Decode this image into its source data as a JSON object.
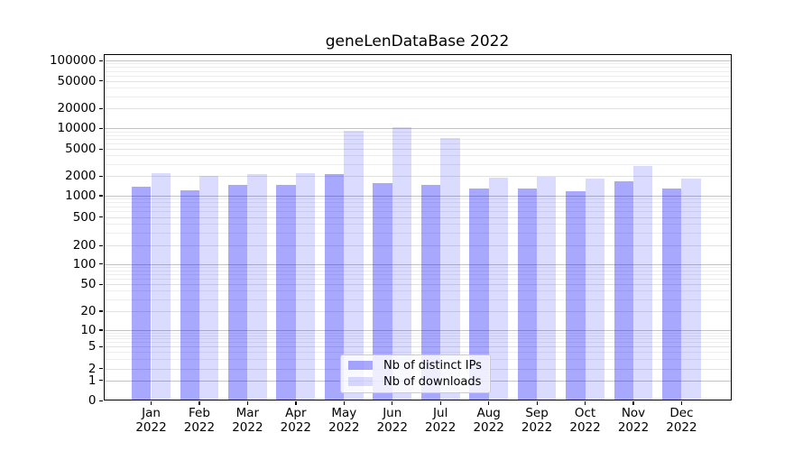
{
  "title": "geneLenDataBase 2022",
  "colors": {
    "ips_bar": "rgba(0,0,255,0.34)",
    "downloads_bar": "rgba(0,0,255,0.14)",
    "grid_decade": "#c3c3c3",
    "grid_labeled": "#e2e2e2",
    "grid_minor": "#ededed",
    "spine": "#000000"
  },
  "axes": {
    "x_categories": [
      {
        "month": "Jan",
        "year": "2022"
      },
      {
        "month": "Feb",
        "year": "2022"
      },
      {
        "month": "Mar",
        "year": "2022"
      },
      {
        "month": "Apr",
        "year": "2022"
      },
      {
        "month": "May",
        "year": "2022"
      },
      {
        "month": "Jun",
        "year": "2022"
      },
      {
        "month": "Jul",
        "year": "2022"
      },
      {
        "month": "Aug",
        "year": "2022"
      },
      {
        "month": "Sep",
        "year": "2022"
      },
      {
        "month": "Oct",
        "year": "2022"
      },
      {
        "month": "Nov",
        "year": "2022"
      },
      {
        "month": "Dec",
        "year": "2022"
      }
    ],
    "y_ticks": [
      0,
      1,
      2,
      5,
      10,
      20,
      50,
      100,
      200,
      500,
      1000,
      2000,
      5000,
      10000,
      20000,
      50000,
      100000
    ]
  },
  "legend": {
    "items": [
      {
        "label": "Nb of distinct IPs",
        "color_key": "ips_bar"
      },
      {
        "label": "Nb of downloads",
        "color_key": "downloads_bar"
      }
    ]
  },
  "chart_data": {
    "type": "bar",
    "title": "geneLenDataBase 2022",
    "categories": [
      "Jan 2022",
      "Feb 2022",
      "Mar 2022",
      "Apr 2022",
      "May 2022",
      "Jun 2022",
      "Jul 2022",
      "Aug 2022",
      "Sep 2022",
      "Oct 2022",
      "Nov 2022",
      "Dec 2022"
    ],
    "series": [
      {
        "name": "Nb of distinct IPs",
        "values": [
          1350,
          1200,
          1480,
          1450,
          2100,
          1550,
          1480,
          1270,
          1270,
          1170,
          1630,
          1280
        ]
      },
      {
        "name": "Nb of downloads",
        "values": [
          2200,
          2000,
          2150,
          2200,
          9200,
          10300,
          7300,
          1870,
          1960,
          1800,
          2800,
          1830
        ]
      }
    ],
    "xlabel": "",
    "ylabel": "",
    "yscale": "symlog",
    "ylim": [
      0,
      130000
    ],
    "yticks": [
      0,
      1,
      2,
      5,
      10,
      20,
      50,
      100,
      200,
      500,
      1000,
      2000,
      5000,
      10000,
      20000,
      50000,
      100000
    ],
    "grid": true,
    "legend_position": "lower center"
  }
}
